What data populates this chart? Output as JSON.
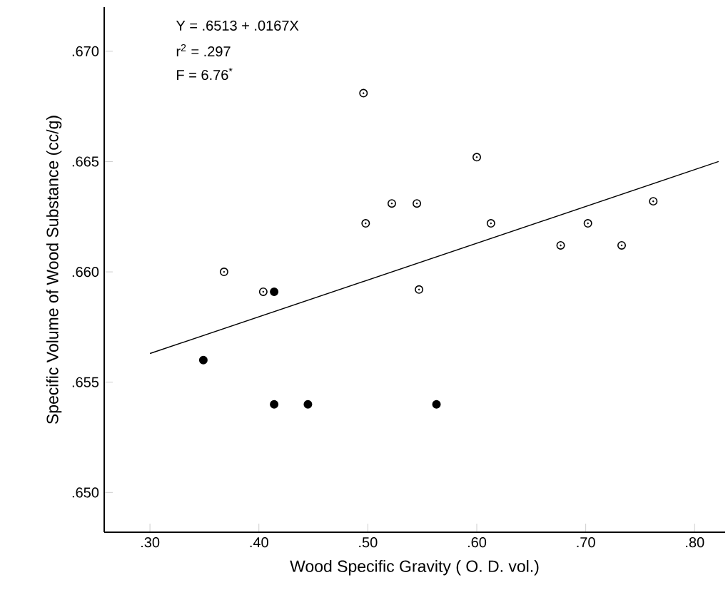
{
  "chart_data": {
    "type": "scatter",
    "xlabel": "Wood Specific Gravity  ( O. D. vol.)",
    "ylabel": "Specific Volume of Wood Substance (cc/g)",
    "annotations": [
      "Y  = .6513 + .0167X",
      "r$^{2}$  = .297",
      "F   =  6.76$^{*}$"
    ],
    "marker": "circle",
    "grid": false,
    "xlim": [
      0.258,
      0.828
    ],
    "ylim": [
      0.6482,
      0.672
    ],
    "xticks": [
      {
        "value": 0.3,
        "label": ".30"
      },
      {
        "value": 0.4,
        "label": ".40"
      },
      {
        "value": 0.5,
        "label": ".50"
      },
      {
        "value": 0.6,
        "label": ".60"
      },
      {
        "value": 0.7,
        "label": ".70"
      },
      {
        "value": 0.8,
        "label": ".80"
      }
    ],
    "yticks": [
      {
        "value": 0.65,
        "label": ".650"
      },
      {
        "value": 0.655,
        "label": ".655"
      },
      {
        "value": 0.66,
        "label": ".660"
      },
      {
        "value": 0.665,
        "label": ".665"
      },
      {
        "value": 0.67,
        "label": ".670"
      }
    ],
    "series": [
      {
        "color": "#000000",
        "x": [
          0.368,
          0.404,
          0.496,
          0.6,
          0.522,
          0.545,
          0.498,
          0.613,
          0.762,
          0.702,
          0.677,
          0.733,
          0.547
        ],
        "values": [
          0.66,
          0.6591,
          0.6681,
          0.6652,
          0.6631,
          0.6631,
          0.6622,
          0.6622,
          0.6632,
          0.6622,
          0.6612,
          0.6612,
          0.6592
        ]
      },
      {
        "color": "#000000",
        "x": [
          0.414,
          0.349,
          0.414,
          0.445,
          0.563
        ],
        "values": [
          0.6591,
          0.656,
          0.654,
          0.654,
          0.654
        ]
      },
      {
        "type": "line",
        "color": "#000000",
        "marker": "none",
        "x": [
          0.3,
          0.822
        ],
        "values": [
          0.6563,
          0.665
        ]
      }
    ]
  }
}
